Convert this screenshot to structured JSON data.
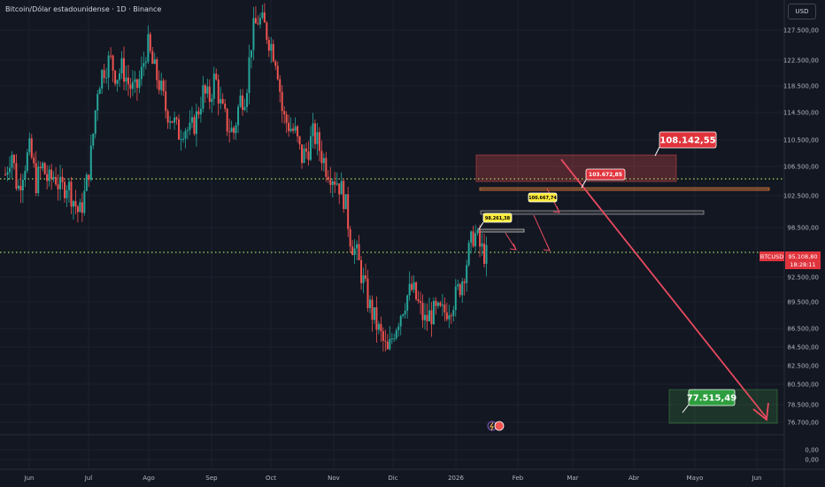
{
  "header": {
    "title": "Bitcoin/Dólar estadounidense · 1D · Binance",
    "currency": "USD"
  },
  "colors": {
    "bg": "#131722",
    "up": "#26a69a",
    "down": "#ef5350",
    "arrow": "#e84a5f",
    "target_up": "#43a047",
    "green_dots": "#a5d65b",
    "label_yellow": "#ffeb3b"
  },
  "chart_data": {
    "type": "candlestick",
    "symbol": "BTCUSD",
    "timeframe": "1D",
    "exchange": "Binance",
    "y_ticks": [
      "127.500,00",
      "122.500,00",
      "118.500,00",
      "114.500,00",
      "110.500,00",
      "106.500,00",
      "102.500,00",
      "98.500,00",
      "92.500,00",
      "89.500,00",
      "86.500,00",
      "84.500,00",
      "82.500,00",
      "80.500,00",
      "78.500,00",
      "76.700,00",
      "0,00",
      "0,00"
    ],
    "x_ticks": [
      "Jun",
      "Jul",
      "Ago",
      "Sep",
      "Oct",
      "Nov",
      "Dic",
      "2026",
      "Feb",
      "Mar",
      "Abr",
      "Mayo",
      "Jun"
    ],
    "last_price": {
      "symbol": "BTCUSD",
      "price": "95.108,80",
      "countdown": "18:28:11"
    },
    "price_path": [
      105,
      108,
      103,
      106,
      108,
      104,
      106,
      104,
      105,
      103,
      104,
      102,
      100,
      103,
      108,
      116,
      118,
      119,
      117,
      118,
      116,
      115,
      117,
      121,
      118,
      116,
      113,
      112,
      110,
      111,
      110,
      112,
      115,
      114,
      117,
      113,
      111,
      110,
      114,
      115,
      122,
      124,
      123,
      121,
      119,
      112,
      111,
      110,
      107,
      108,
      110,
      108,
      106,
      105,
      104,
      102,
      97,
      95,
      92,
      89,
      87,
      85,
      83,
      86,
      88,
      90,
      91,
      89,
      87,
      88,
      88,
      88,
      89,
      90,
      92,
      95,
      98,
      96,
      95
    ],
    "annotations": {
      "target_high": "108.142,55",
      "target_low": "77.515,49",
      "level_1": "103.672,85",
      "level_2": "100.667,74",
      "level_3": "98.261,38"
    },
    "projection": {
      "from": 108142.55,
      "to": 77515.49
    }
  }
}
